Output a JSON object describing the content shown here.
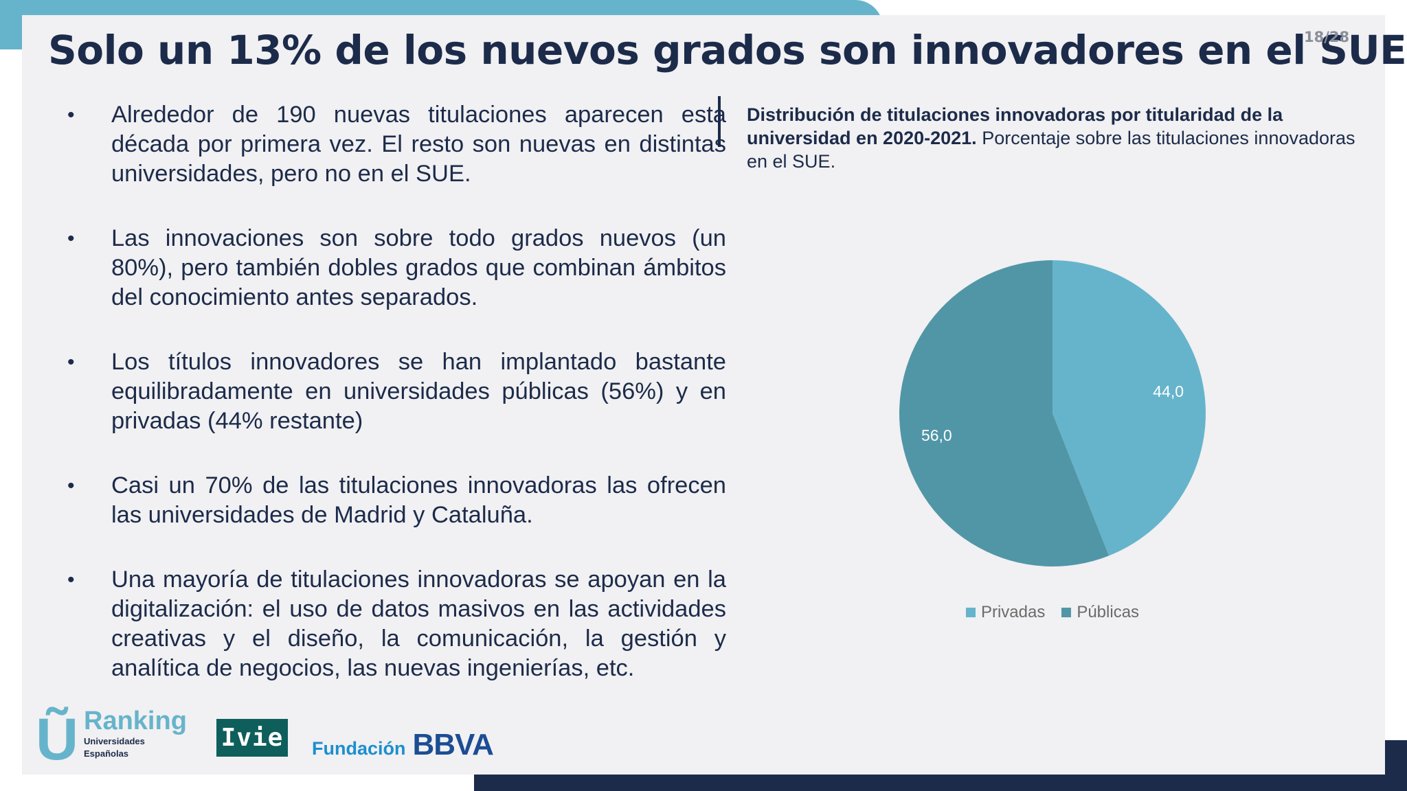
{
  "slide": {
    "title": "Solo un 13% de los nuevos grados son innovadores en el SUE",
    "page_number": "18/28"
  },
  "bullets": [
    "Alrededor de 190 nuevas titulaciones aparecen esta década por primera vez. El resto son nuevas en distintas universidades, pero no en el SUE.",
    "Las innovaciones son sobre todo grados nuevos (un 80%), pero también dobles grados que combinan ámbitos del conocimiento antes separados.",
    "Los títulos innovadores se han implantado bastante equilibradamente en universidades públicas (56%) y en privadas (44% restante)",
    "Casi un 70% de las titulaciones innovadoras las ofrecen las universidades de Madrid y Cataluña.",
    "Una mayoría de titulaciones innovadoras se apoyan en la digitalización: el uso de datos masivos en las actividades creativas y el diseño, la comunicación, la gestión y analítica de negocios, las nuevas ingenierías, etc."
  ],
  "chart_heading": {
    "bold": "Distribución de titulaciones innovadoras por titularidad de la universidad en 2020-2021.",
    "normal": "Porcentaje sobre las titulaciones innovadoras en el SUE."
  },
  "chart_data": {
    "type": "pie",
    "categories": [
      "Privadas",
      "Públicas"
    ],
    "values": [
      44.0,
      56.0
    ],
    "data_labels": [
      "44,0",
      "56,0"
    ],
    "colors": [
      "#66b4cb",
      "#5196a7"
    ],
    "legend_position": "bottom"
  },
  "logos": {
    "ranking": {
      "letter": "Ũ",
      "name": "Ranking",
      "line1": "Universidades",
      "line2": "Españolas"
    },
    "ivie": "Ivie",
    "bbva": {
      "foundation": "Fundación",
      "brand": "BBVA"
    }
  },
  "colors": {
    "navy": "#1c2b4a",
    "accent_blue": "#66b4cb",
    "slide_bg": "#f1f0f2"
  }
}
